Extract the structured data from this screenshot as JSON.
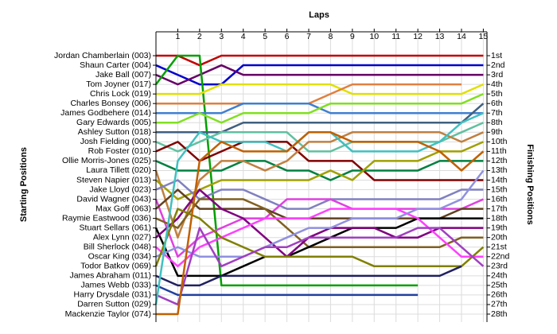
{
  "chart_data": {
    "type": "line",
    "title": "Laps",
    "y_label": "Starting Positions",
    "y2_label": "Finishing Positions",
    "x": [
      0,
      1,
      2,
      3,
      4,
      5,
      6,
      7,
      8,
      9,
      10,
      11,
      12,
      13,
      14,
      15
    ],
    "xlim": [
      0,
      15
    ],
    "xticks": [
      1,
      2,
      3,
      4,
      5,
      6,
      7,
      8,
      9,
      10,
      11,
      12,
      13,
      14,
      15
    ],
    "ylim": [
      28.5,
      0.5
    ],
    "grid": true,
    "yticks": [
      {
        "value": 1,
        "label": "Jordan Chamberlain (003)"
      },
      {
        "value": 2,
        "label": "Shaun Carter (004)"
      },
      {
        "value": 3,
        "label": "Jake Ball (007)"
      },
      {
        "value": 4,
        "label": "Tom Joyner (017)"
      },
      {
        "value": 5,
        "label": "Chris Lock (019)"
      },
      {
        "value": 6,
        "label": "Charles Bonsey (006)"
      },
      {
        "value": 7,
        "label": "James Godbehere (014)"
      },
      {
        "value": 8,
        "label": "Gary Edwards (005)"
      },
      {
        "value": 9,
        "label": "Ashley Sutton (018)"
      },
      {
        "value": 10,
        "label": "Josh Fielding (000)"
      },
      {
        "value": 11,
        "label": "Rob Foster (010)"
      },
      {
        "value": 12,
        "label": "Ollie Morris-Jones (025)"
      },
      {
        "value": 13,
        "label": "Laura Tillett (020)"
      },
      {
        "value": 14,
        "label": "Steven Napier (013)"
      },
      {
        "value": 15,
        "label": "Jake Lloyd (023)"
      },
      {
        "value": 16,
        "label": "David Wagner (043)"
      },
      {
        "value": 17,
        "label": "Max Goff (063)"
      },
      {
        "value": 18,
        "label": "Raymie Eastwood (036)"
      },
      {
        "value": 19,
        "label": "Stuart Sellars (061)"
      },
      {
        "value": 20,
        "label": "Alex Lynn (027)"
      },
      {
        "value": 21,
        "label": "Bill Sherlock (048)"
      },
      {
        "value": 22,
        "label": "Oscar King (034)"
      },
      {
        "value": 23,
        "label": "Todor Batkov (069)"
      },
      {
        "value": 24,
        "label": "James Abraham (011)"
      },
      {
        "value": 25,
        "label": "James Webb (033)"
      },
      {
        "value": 26,
        "label": "Harry Drysdale (031)"
      },
      {
        "value": 27,
        "label": "Darren Sutton (029)"
      },
      {
        "value": 28,
        "label": "Mackenzie Taylor (074)"
      }
    ],
    "y2ticks": [
      {
        "value": 1,
        "label": "1st"
      },
      {
        "value": 2,
        "label": "2nd"
      },
      {
        "value": 3,
        "label": "3rd"
      },
      {
        "value": 4,
        "label": "4th"
      },
      {
        "value": 5,
        "label": "5th"
      },
      {
        "value": 6,
        "label": "6th"
      },
      {
        "value": 7,
        "label": "7th"
      },
      {
        "value": 8,
        "label": "8th"
      },
      {
        "value": 9,
        "label": "9th"
      },
      {
        "value": 10,
        "label": "10th"
      },
      {
        "value": 11,
        "label": "11th"
      },
      {
        "value": 12,
        "label": "12th"
      },
      {
        "value": 13,
        "label": "13th"
      },
      {
        "value": 14,
        "label": "14th"
      },
      {
        "value": 15,
        "label": "15th"
      },
      {
        "value": 16,
        "label": "16th"
      },
      {
        "value": 17,
        "label": "17th"
      },
      {
        "value": 18,
        "label": "18th"
      },
      {
        "value": 19,
        "label": "19th"
      },
      {
        "value": 20,
        "label": "20th"
      },
      {
        "value": 21,
        "label": "21st"
      },
      {
        "value": 22,
        "label": "22nd"
      },
      {
        "value": 23,
        "label": "23rd"
      },
      {
        "value": 24,
        "label": "24th"
      },
      {
        "value": 25,
        "label": "25th"
      },
      {
        "value": 26,
        "label": "26th"
      },
      {
        "value": 27,
        "label": "27th"
      },
      {
        "value": 28,
        "label": "28th"
      }
    ],
    "series": [
      {
        "name": "Jordan Chamberlain (003)",
        "color": "#c00000",
        "values": [
          1,
          1,
          2,
          1,
          1,
          1,
          1,
          1,
          1,
          1,
          1,
          1,
          1,
          1,
          1,
          1
        ]
      },
      {
        "name": "Shaun Carter (004)",
        "color": "#0000cc",
        "values": [
          2,
          3,
          4,
          4,
          2,
          2,
          2,
          2,
          2,
          2,
          2,
          2,
          2,
          2,
          2,
          2
        ]
      },
      {
        "name": "Jake Ball (007)",
        "color": "#660066",
        "values": [
          3,
          4,
          3,
          2,
          3,
          3,
          3,
          3,
          3,
          3,
          3,
          3,
          3,
          3,
          3,
          3
        ]
      },
      {
        "name": "Tom Joyner (017)",
        "color": "#00a000",
        "values": [
          4,
          1,
          1,
          25,
          25,
          25,
          25,
          25,
          25,
          25,
          25,
          25,
          25,
          null,
          null,
          null
        ]
      },
      {
        "name": "Chris Lock (019)",
        "color": "#e0e000",
        "values": [
          5,
          5,
          5,
          4,
          4,
          4,
          4,
          4,
          4,
          5,
          5,
          5,
          5,
          5,
          5,
          4
        ]
      },
      {
        "name": "Charles Bonsey (006)",
        "color": "#e08040",
        "values": [
          6,
          6,
          6,
          6,
          6,
          6,
          6,
          6,
          5,
          4,
          4,
          4,
          4,
          4,
          4,
          null
        ]
      },
      {
        "name": "James Godbehere (014)",
        "color": "#4080d0",
        "values": [
          7,
          7,
          7,
          7,
          6,
          6,
          6,
          6,
          7,
          7,
          7,
          7,
          7,
          7,
          7,
          7
        ]
      },
      {
        "name": "Gary Edwards (005)",
        "color": "#80e020",
        "values": [
          8,
          8,
          7,
          8,
          7,
          7,
          7,
          7,
          6,
          6,
          6,
          6,
          6,
          6,
          6,
          5
        ]
      },
      {
        "name": "Ashley Sutton (018)",
        "color": "#406080",
        "values": [
          9,
          9,
          9,
          9,
          8,
          8,
          8,
          8,
          8,
          8,
          8,
          8,
          8,
          8,
          8,
          6
        ]
      },
      {
        "name": "Josh Fielding (000)",
        "color": "#60c0a0",
        "values": [
          10,
          11,
          10,
          9,
          9,
          9,
          9,
          11,
          11,
          10,
          10,
          10,
          10,
          10,
          9,
          8
        ]
      },
      {
        "name": "Rob Foster (010)",
        "color": "#800000",
        "values": [
          11,
          10,
          12,
          11,
          10,
          10,
          10,
          12,
          12,
          12,
          14,
          14,
          14,
          14,
          14,
          14
        ]
      },
      {
        "name": "Ollie Morris-Jones (025)",
        "color": "#008040",
        "values": [
          12,
          13,
          13,
          13,
          12,
          12,
          13,
          13,
          14,
          13,
          13,
          13,
          13,
          12,
          12,
          12
        ]
      },
      {
        "name": "Laura Tillett (020)",
        "color": "#c08040",
        "values": [
          13,
          20,
          14,
          12,
          12,
          13,
          12,
          10,
          10,
          9,
          9,
          9,
          9,
          9,
          10,
          9
        ]
      },
      {
        "name": "Steven Napier (013)",
        "color": "#a0a000",
        "values": [
          14,
          16,
          15,
          14,
          14,
          14,
          14,
          14,
          13,
          14,
          12,
          12,
          12,
          11,
          11,
          10
        ]
      },
      {
        "name": "Jake Lloyd (023)",
        "color": "#8080c0",
        "values": [
          15,
          14,
          16,
          15,
          15,
          16,
          17,
          17,
          16,
          16,
          16,
          16,
          16,
          16,
          15,
          15
        ]
      },
      {
        "name": "David Wagner (043)",
        "color": "#e040e0",
        "values": [
          16,
          22,
          20,
          19,
          18,
          18,
          16,
          16,
          16,
          17,
          17,
          17,
          17,
          17,
          17,
          16
        ]
      },
      {
        "name": "Max Goff (063)",
        "color": "#604020",
        "values": [
          17,
          15,
          17,
          17,
          17,
          17,
          18,
          18,
          18,
          18,
          18,
          18,
          18,
          18,
          17,
          17
        ]
      },
      {
        "name": "Raymie Eastwood (036)",
        "color": "#806020",
        "values": [
          18,
          19,
          16,
          16,
          16,
          17,
          19,
          21,
          21,
          21,
          21,
          21,
          21,
          21,
          20,
          20
        ]
      },
      {
        "name": "Stuart Sellars (061)",
        "color": "#000000",
        "values": [
          19,
          24,
          24,
          24,
          23,
          22,
          22,
          21,
          20,
          19,
          19,
          19,
          18,
          18,
          18,
          18
        ]
      },
      {
        "name": "Alex Lynn (027)",
        "color": "#800080",
        "values": [
          20,
          18,
          15,
          17,
          18,
          20,
          22,
          20,
          19,
          19,
          19,
          20,
          20,
          19,
          19,
          19
        ]
      },
      {
        "name": "Bill Sherlock (048)",
        "color": "#ff40ff",
        "values": [
          21,
          23,
          21,
          20,
          19,
          18,
          18,
          18,
          17,
          17,
          17,
          17,
          18,
          20,
          22,
          22
        ]
      },
      {
        "name": "Oscar King (034)",
        "color": "#9090e0",
        "values": [
          22,
          21,
          22,
          22,
          22,
          21,
          20,
          19,
          19,
          18,
          18,
          18,
          17,
          17,
          16,
          13
        ]
      },
      {
        "name": "Todor Batkov (069)",
        "color": "#808000",
        "values": [
          23,
          17,
          18,
          20,
          21,
          22,
          22,
          22,
          22,
          22,
          23,
          23,
          23,
          23,
          23,
          21
        ]
      },
      {
        "name": "James Abraham (011)",
        "color": "#202060",
        "values": [
          24,
          25,
          25,
          24,
          24,
          24,
          24,
          24,
          24,
          24,
          24,
          24,
          24,
          24,
          23,
          null
        ]
      },
      {
        "name": "James Webb (033)",
        "color": "#2040a0",
        "values": [
          25,
          26,
          26,
          26,
          26,
          26,
          26,
          26,
          26,
          26,
          26,
          26,
          26,
          null,
          null,
          null
        ]
      },
      {
        "name": "Harry Drysdale (031)",
        "color": "#a040c0",
        "values": [
          26,
          27,
          19,
          23,
          22,
          21,
          21,
          20,
          20,
          20,
          20,
          20,
          19,
          19,
          21,
          23
        ]
      },
      {
        "name": "Darren Sutton (029)",
        "color": "#40c0c0",
        "values": [
          27,
          12,
          9,
          10,
          10,
          10,
          11,
          9,
          9,
          11,
          11,
          11,
          11,
          10,
          8,
          7
        ]
      },
      {
        "name": "Mackenzie Taylor (074)",
        "color": "#c06000",
        "values": [
          28,
          28,
          12,
          10,
          11,
          11,
          11,
          9,
          9,
          10,
          10,
          10,
          10,
          11,
          13,
          11
        ]
      }
    ]
  }
}
